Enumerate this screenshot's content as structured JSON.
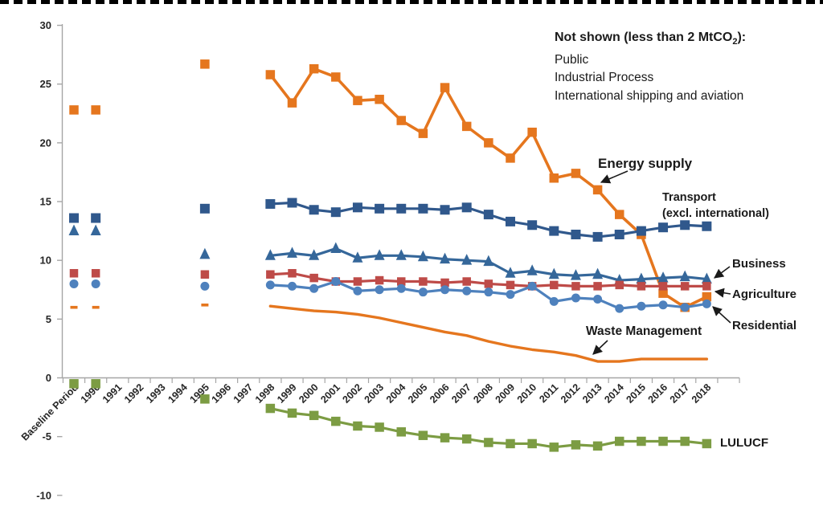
{
  "page": {
    "background_color": "#FFFFFF",
    "top_border_color": "#000000",
    "axis_line_color": "#A6A6A6",
    "text_color": "#1A1A1A"
  },
  "annotation_box": {
    "title_prefix": "Not shown (less than 2 MtCO",
    "title_sub": "2",
    "title_suffix": "):",
    "lines": [
      "Public",
      "Industrial Process",
      "International shipping and aviation"
    ]
  },
  "chart_data": {
    "type": "line",
    "title": "",
    "xlabel": "",
    "ylabel": "",
    "unit": "MtCO2",
    "gridlines": false,
    "legend_position": "direct-labels-on-chart",
    "y_axis": {
      "min": -10,
      "max": 30,
      "tick_step": 5,
      "ticks": [
        30,
        25,
        20,
        15,
        10,
        5,
        0,
        -5,
        -10
      ]
    },
    "categories": [
      "Baseline Period",
      "1990",
      "1991",
      "1992",
      "1993",
      "1994",
      "1995",
      "1996",
      "1997",
      "1998",
      "1999",
      "2000",
      "2001",
      "2002",
      "2003",
      "2004",
      "2005",
      "2006",
      "2007",
      "2008",
      "2009",
      "2010",
      "2011",
      "2012",
      "2013",
      "2014",
      "2015",
      "2016",
      "2017",
      "2018"
    ],
    "note": "1991-1994 and 1996-1997 have no plotted points; Baseline Period, 1990 and 1995 are isolated markers; connected lines run 1998-2018",
    "series": [
      {
        "id": "energy_supply",
        "name": "Energy supply",
        "color": "#E5761E",
        "marker": "square",
        "values": [
          22.8,
          22.8,
          null,
          null,
          null,
          null,
          26.7,
          null,
          null,
          25.8,
          23.4,
          26.3,
          25.6,
          23.6,
          23.7,
          21.9,
          20.8,
          24.7,
          21.4,
          20.0,
          18.7,
          20.9,
          17.0,
          17.4,
          16.0,
          13.9,
          12.2,
          7.2,
          6.0,
          6.9
        ]
      },
      {
        "id": "transport",
        "name": "Transport (excl. international)",
        "label_lines": [
          "Transport",
          "(excl. international)"
        ],
        "color": "#30588C",
        "marker": "square",
        "values": [
          13.6,
          13.6,
          null,
          null,
          null,
          null,
          14.4,
          null,
          null,
          14.8,
          14.9,
          14.3,
          14.1,
          14.5,
          14.4,
          14.4,
          14.4,
          14.3,
          14.5,
          13.9,
          13.3,
          13.0,
          12.5,
          12.2,
          12.0,
          12.2,
          12.5,
          12.8,
          13.0,
          12.9
        ]
      },
      {
        "id": "business",
        "name": "Business",
        "color": "#35679A",
        "marker": "triangle",
        "values": [
          12.5,
          12.5,
          null,
          null,
          null,
          null,
          10.5,
          null,
          null,
          10.4,
          10.6,
          10.4,
          11.0,
          10.2,
          10.4,
          10.4,
          10.3,
          10.1,
          10.0,
          9.9,
          8.9,
          9.1,
          8.8,
          8.7,
          8.8,
          8.3,
          8.4,
          8.5,
          8.6,
          8.4
        ]
      },
      {
        "id": "agriculture",
        "name": "Agriculture",
        "color": "#BE4B48",
        "marker": "square",
        "values": [
          8.9,
          8.9,
          null,
          null,
          null,
          null,
          8.8,
          null,
          null,
          8.8,
          8.9,
          8.5,
          8.2,
          8.2,
          8.3,
          8.2,
          8.2,
          8.1,
          8.2,
          8.0,
          7.9,
          7.8,
          7.9,
          7.8,
          7.8,
          7.9,
          7.8,
          7.8,
          7.8,
          7.8
        ]
      },
      {
        "id": "residential",
        "name": "Residential",
        "color": "#4E81BD",
        "marker": "circle",
        "values": [
          8.0,
          8.0,
          null,
          null,
          null,
          null,
          7.8,
          null,
          null,
          7.9,
          7.8,
          7.6,
          8.2,
          7.4,
          7.5,
          7.6,
          7.3,
          7.5,
          7.4,
          7.3,
          7.1,
          7.8,
          6.5,
          6.8,
          6.7,
          5.9,
          6.1,
          6.2,
          6.0,
          6.3
        ]
      },
      {
        "id": "waste",
        "name": "Waste Management",
        "color": "#E5761E",
        "marker": "dash",
        "values": [
          6.0,
          6.0,
          null,
          null,
          null,
          null,
          6.2,
          null,
          null,
          6.1,
          5.9,
          5.7,
          5.6,
          5.4,
          5.1,
          4.7,
          4.3,
          3.9,
          3.6,
          3.1,
          2.7,
          2.4,
          2.2,
          1.9,
          1.4,
          1.4,
          1.6,
          1.6,
          1.6,
          1.6
        ]
      },
      {
        "id": "lulucf",
        "name": "LULUCF",
        "color": "#7C9C43",
        "marker": "square",
        "values": [
          -0.5,
          -0.5,
          null,
          null,
          null,
          null,
          -1.8,
          null,
          null,
          -2.6,
          -3.0,
          -3.2,
          -3.7,
          -4.1,
          -4.2,
          -4.6,
          -4.9,
          -5.1,
          -5.2,
          -5.5,
          -5.6,
          -5.6,
          -5.9,
          -5.7,
          -5.8,
          -5.4,
          -5.4,
          -5.4,
          -5.4,
          -5.6
        ]
      }
    ]
  }
}
